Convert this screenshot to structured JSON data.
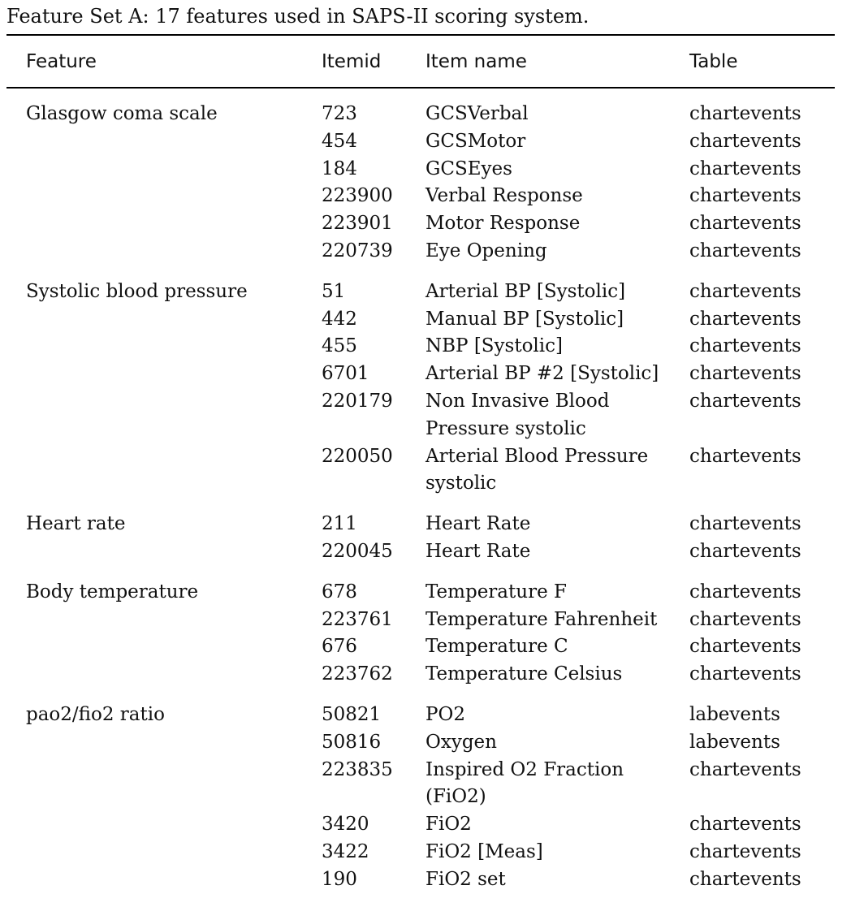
{
  "caption": "Feature Set A: 17 features used in SAPS-II scoring system.",
  "headers": {
    "feature": "Feature",
    "itemid": "Itemid",
    "item_name": "Item name",
    "table": "Table"
  },
  "groups": [
    {
      "feature": "Glasgow coma scale",
      "rows": [
        {
          "itemid": "723",
          "name": "GCSVerbal",
          "table": "chartevents"
        },
        {
          "itemid": "454",
          "name": "GCSMotor",
          "table": "chartevents"
        },
        {
          "itemid": "184",
          "name": "GCSEyes",
          "table": "chartevents"
        },
        {
          "itemid": "223900",
          "name": "Verbal Response",
          "table": "chartevents"
        },
        {
          "itemid": "223901",
          "name": "Motor Response",
          "table": "chartevents"
        },
        {
          "itemid": "220739",
          "name": "Eye Opening",
          "table": "chartevents"
        }
      ]
    },
    {
      "feature": "Systolic blood pressure",
      "rows": [
        {
          "itemid": "51",
          "name": "Arterial BP [Systolic]",
          "table": "chartevents"
        },
        {
          "itemid": "442",
          "name": "Manual BP [Systolic]",
          "table": "chartevents"
        },
        {
          "itemid": "455",
          "name": "NBP [Systolic]",
          "table": "chartevents"
        },
        {
          "itemid": "6701",
          "name": "Arterial BP #2 [Systolic]",
          "table": "chartevents"
        },
        {
          "itemid": "220179",
          "name": "Non Invasive Blood Pressure systolic",
          "table": "chartevents"
        },
        {
          "itemid": "220050",
          "name": "Arterial Blood Pressure systolic",
          "table": "chartevents"
        }
      ]
    },
    {
      "feature": "Heart rate",
      "rows": [
        {
          "itemid": "211",
          "name": "Heart Rate",
          "table": "chartevents"
        },
        {
          "itemid": "220045",
          "name": "Heart Rate",
          "table": "chartevents"
        }
      ]
    },
    {
      "feature": "Body temperature",
      "rows": [
        {
          "itemid": "678",
          "name": "Temperature F",
          "table": "chartevents"
        },
        {
          "itemid": "223761",
          "name": "Temperature Fahrenheit",
          "table": "chartevents"
        },
        {
          "itemid": "676",
          "name": "Temperature C",
          "table": "chartevents"
        },
        {
          "itemid": "223762",
          "name": "Temperature Celsius",
          "table": "chartevents"
        }
      ]
    },
    {
      "feature": "pao2/fio2 ratio",
      "rows": [
        {
          "itemid": "50821",
          "name": "PO2",
          "table": "labevents"
        },
        {
          "itemid": "50816",
          "name": "Oxygen",
          "table": "labevents"
        },
        {
          "itemid": "223835",
          "name": "Inspired O2 Fraction (FiO2)",
          "table": "chartevents"
        },
        {
          "itemid": "3420",
          "name": "FiO2",
          "table": "chartevents"
        },
        {
          "itemid": "3422",
          "name": "FiO2 [Meas]",
          "table": "chartevents"
        },
        {
          "itemid": "190",
          "name": "FiO2 set",
          "table": "chartevents"
        }
      ]
    }
  ]
}
